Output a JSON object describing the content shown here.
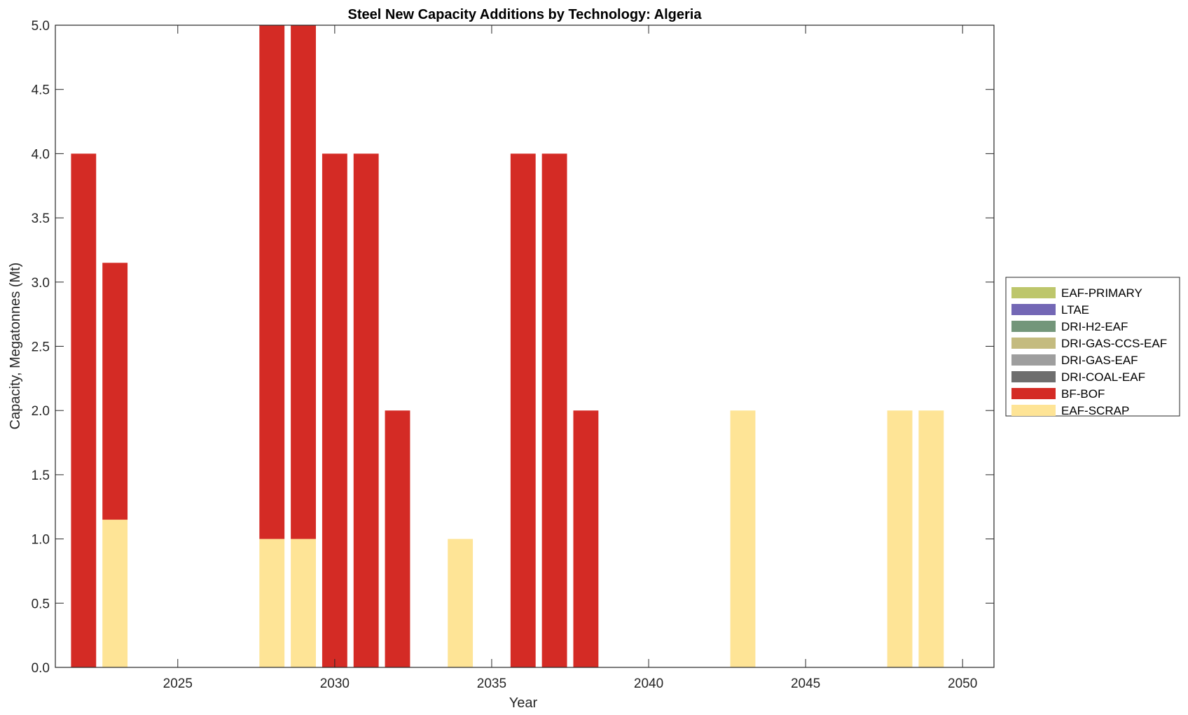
{
  "chart_data": {
    "type": "bar",
    "stacked": true,
    "title": "Steel New Capacity Additions by Technology: Algeria",
    "xlabel": "Year",
    "ylabel": "Capacity, Megatonnes (Mt)",
    "xlim": [
      2021.1,
      2051
    ],
    "ylim": [
      0,
      5
    ],
    "xticks": [
      2025,
      2030,
      2035,
      2040,
      2045,
      2050
    ],
    "yticks": [
      "0.0",
      "0.5",
      "1.0",
      "1.5",
      "2.0",
      "2.5",
      "3.0",
      "3.5",
      "4.0",
      "4.5",
      "5.0"
    ],
    "grid": false,
    "legend_placement": "right-outside",
    "years": [
      2022,
      2023,
      2028,
      2029,
      2030,
      2031,
      2032,
      2034,
      2036,
      2037,
      2038,
      2043,
      2048,
      2049
    ],
    "series": [
      {
        "name": "EAF-SCRAP",
        "color": "#fee496",
        "values": [
          0,
          1.15,
          1,
          1,
          0,
          0,
          0,
          1,
          0,
          0,
          0,
          2,
          2,
          2
        ]
      },
      {
        "name": "BF-BOF",
        "color": "#d42b25",
        "values": [
          4,
          2,
          4,
          4,
          4,
          4,
          2,
          0,
          4,
          4,
          2,
          0,
          0,
          0
        ]
      },
      {
        "name": "DRI-COAL-EAF",
        "color": "#6e6e6e",
        "values": [
          0,
          0,
          0,
          0,
          0,
          0,
          0,
          0,
          0,
          0,
          0,
          0,
          0,
          0
        ]
      },
      {
        "name": "DRI-GAS-EAF",
        "color": "#9e9e9e",
        "values": [
          0,
          0,
          0,
          0,
          0,
          0,
          0,
          0,
          0,
          0,
          0,
          0,
          0,
          0
        ]
      },
      {
        "name": "DRI-GAS-CCS-EAF",
        "color": "#c4bb7f",
        "values": [
          0,
          0,
          0,
          0,
          0,
          0,
          0,
          0,
          0,
          0,
          0,
          0,
          0,
          0
        ]
      },
      {
        "name": "DRI-H2-EAF",
        "color": "#73967a",
        "values": [
          0,
          0,
          0,
          0,
          0,
          0,
          0,
          0,
          0,
          0,
          0,
          0,
          0,
          0
        ]
      },
      {
        "name": "LTAE",
        "color": "#7367b5",
        "values": [
          0,
          0,
          0,
          0,
          0,
          0,
          0,
          0,
          0,
          0,
          0,
          0,
          0,
          0
        ]
      },
      {
        "name": "EAF-PRIMARY",
        "color": "#bdc66b",
        "values": [
          0,
          0,
          0,
          0,
          0,
          0,
          0,
          0,
          0,
          0,
          0,
          0,
          0,
          0
        ]
      }
    ],
    "legend_order": [
      "EAF-PRIMARY",
      "LTAE",
      "DRI-H2-EAF",
      "DRI-GAS-CCS-EAF",
      "DRI-GAS-EAF",
      "DRI-COAL-EAF",
      "BF-BOF",
      "EAF-SCRAP"
    ]
  }
}
